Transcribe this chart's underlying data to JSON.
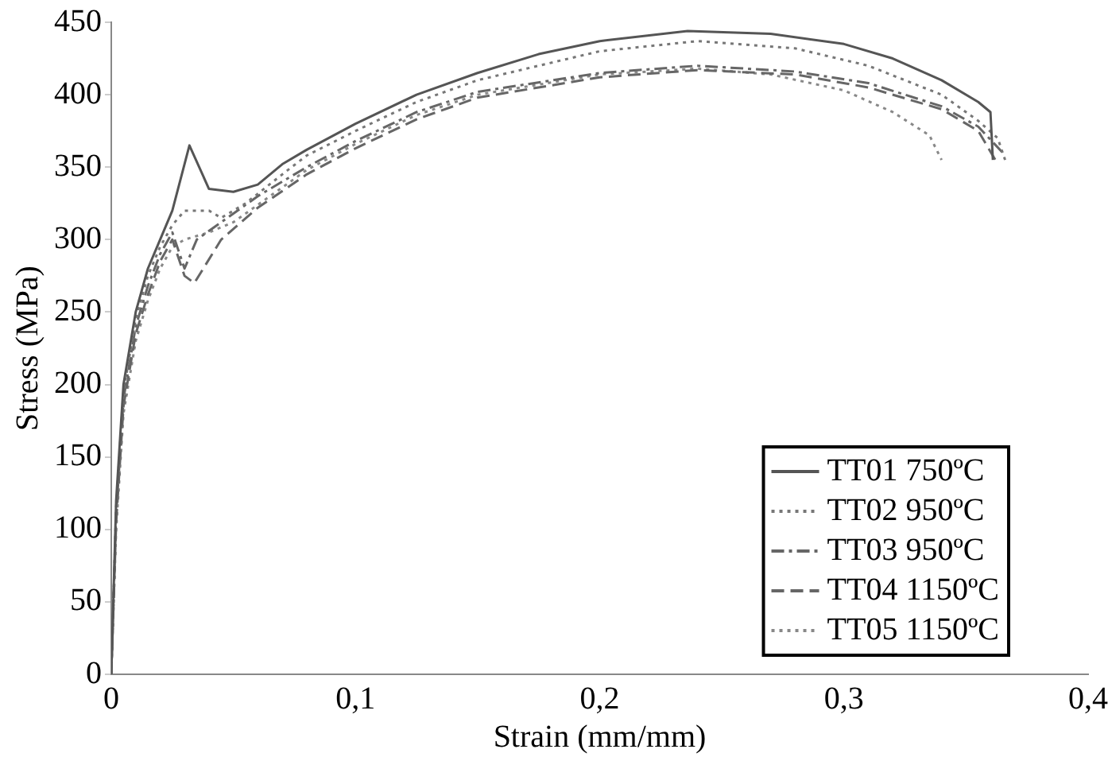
{
  "chart_data": {
    "type": "line",
    "xlabel": "Strain (mm/mm)",
    "ylabel": "Stress (MPa)",
    "xlim": [
      0,
      0.4
    ],
    "xticks": [
      {
        "value": 0,
        "label": "0"
      },
      {
        "value": 0.1,
        "label": "0,1"
      },
      {
        "value": 0.2,
        "label": "0,2"
      },
      {
        "value": 0.3,
        "label": "0,3"
      },
      {
        "value": 0.4,
        "label": "0,4"
      }
    ],
    "ylim": [
      0,
      450
    ],
    "yticks": [
      0,
      50,
      100,
      150,
      200,
      250,
      300,
      350,
      400,
      450
    ],
    "grid": false,
    "legend": "bottom right",
    "marker": "none",
    "series": [
      {
        "name": "TT01 750ºC",
        "color": "#555555",
        "line_style": "solid",
        "x": [
          0,
          0.002,
          0.005,
          0.01,
          0.015,
          0.02,
          0.025,
          0.032,
          0.04,
          0.05,
          0.06,
          0.07,
          0.08,
          0.1,
          0.125,
          0.15,
          0.175,
          0.2,
          0.236,
          0.27,
          0.3,
          0.32,
          0.34,
          0.355,
          0.36,
          0.361
        ],
        "values": [
          0,
          120,
          200,
          250,
          280,
          300,
          320,
          365,
          335,
          333,
          338,
          352,
          362,
          380,
          400,
          415,
          428,
          437,
          444,
          442,
          435,
          425,
          410,
          395,
          388,
          355
        ]
      },
      {
        "name": "TT02 950ºC",
        "color": "#777777",
        "line_style": "dotted",
        "x": [
          0,
          0.002,
          0.005,
          0.01,
          0.015,
          0.02,
          0.025,
          0.03,
          0.04,
          0.045,
          0.055,
          0.07,
          0.08,
          0.1,
          0.125,
          0.15,
          0.2,
          0.24,
          0.28,
          0.31,
          0.34,
          0.355,
          0.363,
          0.366
        ],
        "values": [
          0,
          115,
          195,
          245,
          275,
          295,
          310,
          320,
          320,
          315,
          325,
          345,
          358,
          375,
          395,
          410,
          430,
          437,
          432,
          420,
          400,
          382,
          370,
          355
        ]
      },
      {
        "name": "TT03 950ºC",
        "color": "#666666",
        "line_style": "dashdot",
        "x": [
          0,
          0.002,
          0.005,
          0.01,
          0.015,
          0.02,
          0.025,
          0.03,
          0.035,
          0.045,
          0.06,
          0.08,
          0.1,
          0.125,
          0.15,
          0.2,
          0.24,
          0.28,
          0.31,
          0.34,
          0.355,
          0.365
        ],
        "values": [
          0,
          110,
          190,
          240,
          268,
          290,
          305,
          280,
          300,
          312,
          330,
          350,
          368,
          388,
          402,
          415,
          420,
          416,
          408,
          392,
          378,
          360
        ]
      },
      {
        "name": "TT04 1150ºC",
        "color": "#666666",
        "line_style": "dashed",
        "x": [
          0,
          0.002,
          0.005,
          0.01,
          0.015,
          0.02,
          0.025,
          0.03,
          0.034,
          0.045,
          0.06,
          0.08,
          0.1,
          0.125,
          0.15,
          0.2,
          0.24,
          0.28,
          0.31,
          0.34,
          0.355,
          0.362
        ],
        "values": [
          0,
          105,
          185,
          235,
          262,
          285,
          300,
          275,
          270,
          300,
          322,
          345,
          363,
          383,
          398,
          412,
          417,
          414,
          405,
          390,
          375,
          355
        ]
      },
      {
        "name": "TT05 1150ºC",
        "color": "#888888",
        "line_style": "dotted",
        "x": [
          0,
          0.002,
          0.005,
          0.01,
          0.015,
          0.02,
          0.025,
          0.03,
          0.04,
          0.05,
          0.065,
          0.08,
          0.1,
          0.125,
          0.15,
          0.2,
          0.24,
          0.27,
          0.3,
          0.32,
          0.335,
          0.34
        ],
        "values": [
          0,
          100,
          180,
          230,
          258,
          280,
          295,
          300,
          305,
          312,
          330,
          348,
          366,
          386,
          400,
          414,
          418,
          414,
          403,
          388,
          372,
          355
        ]
      }
    ]
  }
}
